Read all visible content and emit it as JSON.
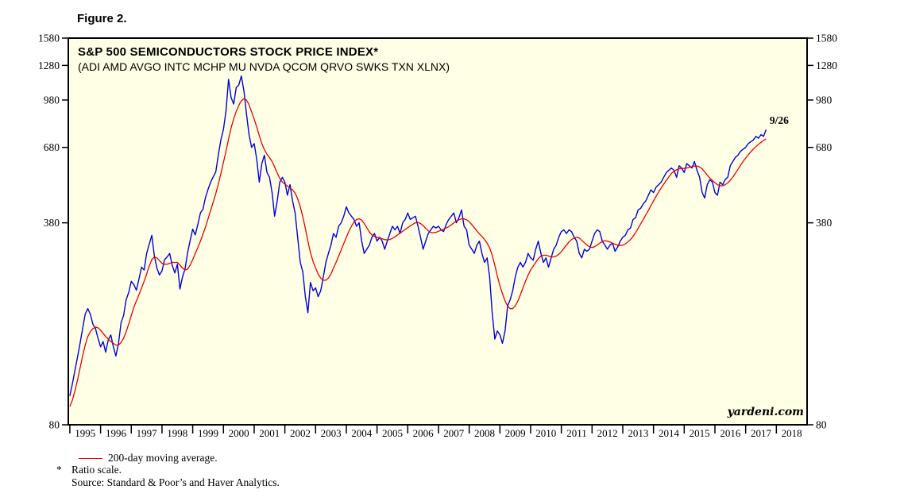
{
  "figure_label": "Figure 2.",
  "chart_data": {
    "type": "line",
    "title": "S&P 500 SEMICONDUCTORS STOCK PRICE INDEX*",
    "subtitle": "(ADI AMD AVGO INTC MCHP MU NVDA QCOM QRVO SWKS TXN XLNX)",
    "y_scale": "log",
    "ylim": [
      80,
      1580
    ],
    "y_ticks": [
      80,
      380,
      680,
      980,
      1280,
      1580
    ],
    "x_domain": [
      1994.95,
      2019.0
    ],
    "x_tick_years": [
      1995,
      1996,
      1997,
      1998,
      1999,
      2000,
      2001,
      2002,
      2003,
      2004,
      2005,
      2006,
      2007,
      2008,
      2009,
      2010,
      2011,
      2012,
      2013,
      2014,
      2015,
      2016,
      2017,
      2018
    ],
    "x_start": 1995.0,
    "x_step": "monthly",
    "plot_bg": "#ffffe6",
    "grid": false,
    "legend_position": "below",
    "annotation": {
      "text": "9/26",
      "x": 2017.78,
      "y": 815,
      "color": "#0000dd"
    },
    "watermark": "yardeni.com",
    "series": [
      {
        "name": "S&P 500 Semiconductors Stock Price Index (daily)",
        "color": "#0000dd",
        "width": 1.4,
        "values": [
          100,
          110,
          122,
          135,
          150,
          168,
          188,
          196,
          188,
          174,
          168,
          156,
          146,
          152,
          140,
          154,
          160,
          146,
          136,
          150,
          176,
          186,
          210,
          222,
          242,
          236,
          226,
          246,
          270,
          264,
          300,
          322,
          345,
          295,
          268,
          254,
          262,
          286,
          292,
          300,
          274,
          258,
          276,
          228,
          250,
          266,
          302,
          332,
          362,
          346,
          376,
          410,
          422,
          462,
          492,
          520,
          542,
          562,
          640,
          722,
          782,
          900,
          1150,
          1000,
          950,
          1080,
          1100,
          1180,
          1050,
          880,
          750,
          680,
          700,
          620,
          520,
          600,
          640,
          560,
          540,
          480,
          400,
          450,
          520,
          540,
          520,
          470,
          510,
          450,
          410,
          340,
          280,
          260,
          215,
          190,
          240,
          225,
          230,
          215,
          225,
          250,
          280,
          300,
          320,
          350,
          340,
          370,
          380,
          400,
          430,
          410,
          400,
          390,
          370,
          380,
          330,
          300,
          310,
          320,
          340,
          350,
          330,
          340,
          330,
          310,
          330,
          350,
          370,
          360,
          370,
          350,
          380,
          390,
          410,
          390,
          395,
          400,
          370,
          340,
          310,
          330,
          350,
          360,
          370,
          365,
          370,
          360,
          355,
          375,
          390,
          400,
          410,
          380,
          395,
          420,
          370,
          360,
          320,
          310,
          300,
          320,
          330,
          300,
          280,
          290,
          250,
          190,
          155,
          165,
          160,
          150,
          165,
          200,
          210,
          225,
          250,
          270,
          280,
          270,
          280,
          300,
          290,
          285,
          310,
          330,
          300,
          280,
          290,
          270,
          290,
          310,
          320,
          340,
          355,
          360,
          350,
          360,
          355,
          340,
          330,
          300,
          290,
          310,
          305,
          310,
          330,
          350,
          360,
          355,
          330,
          320,
          310,
          320,
          325,
          305,
          315,
          330,
          340,
          345,
          360,
          365,
          390,
          395,
          420,
          425,
          440,
          450,
          470,
          490,
          480,
          500,
          510,
          520,
          540,
          560,
          570,
          580,
          570,
          540,
          590,
          580,
          560,
          600,
          590,
          580,
          610,
          570,
          540,
          480,
          460,
          510,
          530,
          520,
          480,
          470,
          520,
          510,
          530,
          540,
          590,
          610,
          630,
          640,
          660,
          670,
          680,
          700,
          710,
          720,
          740,
          730,
          750,
          740,
          780
        ]
      },
      {
        "name": "200-day moving average",
        "color": "#e80000",
        "width": 1.3,
        "values": [
          92,
          97,
          104,
          113,
          124,
          136,
          148,
          158,
          164,
          168,
          170,
          169,
          166,
          162,
          158,
          155,
          152,
          150,
          148,
          148,
          151,
          156,
          164,
          174,
          186,
          198,
          208,
          218,
          230,
          242,
          256,
          272,
          286,
          292,
          290,
          284,
          278,
          276,
          276,
          278,
          280,
          280,
          280,
          274,
          268,
          264,
          266,
          274,
          286,
          300,
          314,
          330,
          348,
          368,
          392,
          418,
          446,
          476,
          512,
          556,
          606,
          660,
          724,
          790,
          848,
          898,
          940,
          975,
          990,
          980,
          945,
          895,
          845,
          795,
          745,
          700,
          668,
          645,
          628,
          610,
          585,
          558,
          535,
          520,
          512,
          505,
          498,
          490,
          478,
          458,
          430,
          398,
          364,
          330,
          302,
          282,
          268,
          256,
          248,
          244,
          244,
          248,
          256,
          268,
          280,
          294,
          308,
          324,
          340,
          356,
          370,
          382,
          390,
          392,
          388,
          378,
          366,
          354,
          346,
          342,
          340,
          338,
          336,
          334,
          333,
          334,
          337,
          341,
          346,
          351,
          356,
          361,
          366,
          371,
          376,
          380,
          381,
          378,
          372,
          364,
          357,
          353,
          352,
          353,
          356,
          359,
          362,
          365,
          369,
          374,
          380,
          385,
          389,
          392,
          392,
          389,
          383,
          375,
          366,
          357,
          349,
          342,
          334,
          325,
          313,
          296,
          274,
          252,
          234,
          220,
          208,
          200,
          196,
          196,
          200,
          208,
          218,
          230,
          242,
          254,
          264,
          272,
          280,
          288,
          294,
          296,
          296,
          294,
          292,
          292,
          294,
          298,
          304,
          312,
          320,
          328,
          334,
          338,
          340,
          338,
          332,
          326,
          320,
          316,
          314,
          316,
          320,
          325,
          329,
          331,
          330,
          328,
          325,
          322,
          320,
          319,
          320,
          323,
          328,
          334,
          342,
          352,
          364,
          377,
          390,
          404,
          418,
          434,
          450,
          466,
          482,
          497,
          512,
          527,
          542,
          556,
          566,
          572,
          576,
          578,
          578,
          580,
          583,
          586,
          589,
          589,
          585,
          576,
          563,
          549,
          537,
          527,
          518,
          510,
          506,
          506,
          510,
          517,
          527,
          541,
          557,
          574,
          592,
          610,
          626,
          642,
          657,
          671,
          684,
          696,
          707,
          717,
          726
        ]
      }
    ]
  },
  "legend": {
    "label": "200-day moving average.",
    "line_color": "#e80000"
  },
  "footnotes": {
    "asterisk": "*",
    "ratio": "Ratio scale.",
    "source": "Source: Standard & Poor’s and Haver Analytics."
  }
}
